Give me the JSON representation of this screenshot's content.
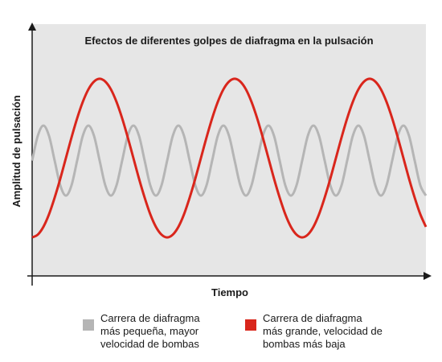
{
  "chart_data": {
    "type": "line",
    "title": "Efectos de diferentes golpes de diafragma en la pulsación",
    "x_label": "Tiempo",
    "y_label": "Amplitud de pulsación",
    "xlim": [
      0,
      490
    ],
    "ylim": [
      0,
      100
    ],
    "x": [
      0,
      7,
      14,
      21,
      28,
      35,
      42,
      49,
      56,
      63,
      70,
      77,
      84,
      91,
      98,
      105,
      112,
      119,
      126,
      133,
      140,
      147,
      154,
      161,
      168,
      175,
      182,
      189,
      196,
      203,
      210,
      217,
      224,
      231,
      238,
      245,
      252,
      259,
      266,
      273,
      280,
      287,
      294,
      301,
      308,
      315,
      322,
      329,
      336,
      343,
      350,
      357,
      364,
      371,
      378,
      385,
      392,
      399,
      406,
      413,
      420,
      427,
      434,
      441,
      448,
      455,
      462,
      469,
      476,
      483,
      490
    ],
    "series": [
      {
        "name": "Carrera de diafragma más pequeña, mayor velocidad de bombas",
        "color": "#b5b5b5",
        "values": [
          45.8,
          55.6,
          59.7,
          55.6,
          45.8,
          36.0,
          31.9,
          36.0,
          45.8,
          55.6,
          59.7,
          55.6,
          45.8,
          36.0,
          31.9,
          36.0,
          45.8,
          55.6,
          59.7,
          55.6,
          45.8,
          36.0,
          31.9,
          36.0,
          45.8,
          55.6,
          59.7,
          55.6,
          45.8,
          36.0,
          31.9,
          36.0,
          45.8,
          55.6,
          59.7,
          55.6,
          45.8,
          36.0,
          31.9,
          36.0,
          45.8,
          55.6,
          59.7,
          55.6,
          45.8,
          36.0,
          31.9,
          36.0,
          45.8,
          55.6,
          59.7,
          55.6,
          45.8,
          36.0,
          31.9,
          36.0,
          45.8,
          55.6,
          59.7,
          55.6,
          45.8,
          36.0,
          31.9,
          36.0,
          45.8,
          55.6,
          59.7,
          55.6,
          45.8,
          36.0,
          31.9
        ]
      },
      {
        "name": "Carrera de diafragma más grande, velocidad de bombas más baja",
        "color": "#d9261c",
        "values": [
          15.3,
          16.4,
          19.5,
          24.5,
          31.1,
          38.6,
          46.8,
          55.0,
          62.6,
          69.1,
          74.1,
          77.2,
          78.3,
          77.2,
          74.1,
          69.1,
          62.6,
          55.0,
          46.8,
          38.6,
          31.1,
          24.5,
          19.5,
          16.4,
          15.3,
          16.4,
          19.5,
          24.5,
          31.1,
          38.6,
          46.8,
          55.0,
          62.6,
          69.1,
          74.1,
          77.2,
          78.3,
          77.2,
          74.1,
          69.1,
          62.6,
          55.0,
          46.8,
          38.6,
          31.1,
          24.5,
          19.5,
          16.4,
          15.3,
          16.4,
          19.5,
          24.5,
          31.1,
          38.6,
          46.8,
          55.0,
          62.6,
          69.1,
          74.1,
          77.2,
          78.3,
          77.2,
          74.1,
          69.1,
          62.6,
          55.0,
          46.8,
          38.6,
          31.1,
          24.5,
          19.5
        ]
      }
    ]
  }
}
